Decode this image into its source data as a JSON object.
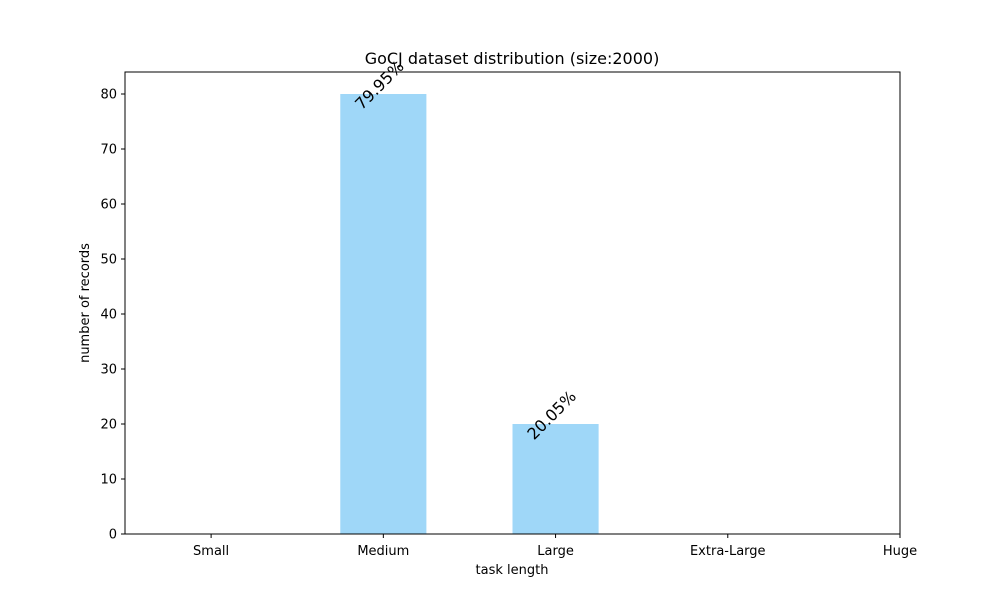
{
  "chart_data": {
    "type": "bar",
    "title": "GoCJ dataset distribution (size:2000)",
    "xlabel": "task length",
    "ylabel": "number of records",
    "categories": [
      "Small",
      "Medium",
      "Large",
      "Extra-Large",
      "Huge"
    ],
    "values": [
      0,
      80,
      20,
      0,
      0
    ],
    "data_labels": [
      "",
      "79.95%",
      "20.05%",
      "",
      ""
    ],
    "ylim": [
      0,
      84
    ],
    "yticks": [
      0,
      10,
      20,
      30,
      40,
      50,
      60,
      70,
      80
    ],
    "bar_color": "#9fd7f8",
    "grid": false,
    "legend": "none"
  }
}
